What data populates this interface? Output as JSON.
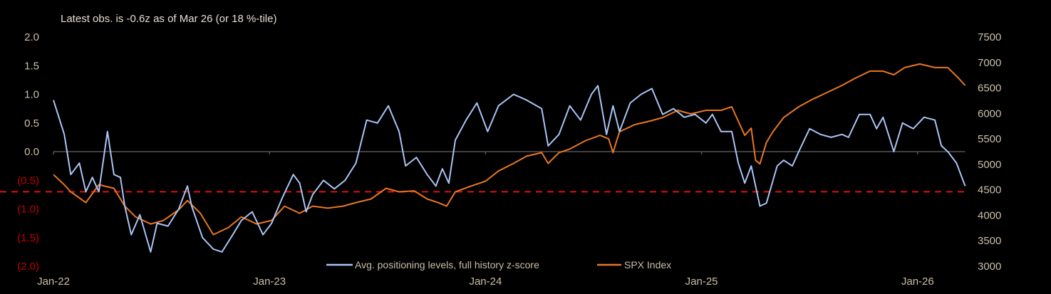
{
  "chart_data": {
    "type": "line",
    "title": "Latest obs. is -0.6z as of Mar 26 (or 18 %-tile)",
    "xlabel": "",
    "ylabel_left": "",
    "ylabel_right": "",
    "x_ticks": [
      "Jan-22",
      "Jan-23",
      "Jan-24",
      "Jan-25",
      "Jan-26"
    ],
    "x_range": [
      2022.0,
      2026.22
    ],
    "left_axis": {
      "range": [
        -2.0,
        2.0
      ],
      "ticks": [
        "2.0",
        "1.5",
        "1.0",
        "0.5",
        "0.0",
        "(0.5)",
        "(1.0)",
        "(1.5)",
        "(2.0)"
      ],
      "tick_values": [
        2.0,
        1.5,
        1.0,
        0.5,
        0.0,
        -0.5,
        -1.0,
        -1.5,
        -2.0
      ],
      "negative_color": "#c00000"
    },
    "right_axis": {
      "range": [
        3000,
        7500
      ],
      "ticks": [
        "7500",
        "7000",
        "6500",
        "6000",
        "5500",
        "5000",
        "4500",
        "4000",
        "3500",
        "3000"
      ],
      "tick_values": [
        7500,
        7000,
        6500,
        6000,
        5500,
        5000,
        4500,
        4000,
        3500,
        3000
      ]
    },
    "threshold": {
      "value": -0.7,
      "axis": "left",
      "color": "#e01010",
      "style": "dashed"
    },
    "legend_placement": "bottom-center",
    "series": [
      {
        "name": "Avg. positioning levels, full history z-score",
        "axis": "left",
        "color": "#a9c4f5",
        "points": [
          [
            2022.0,
            0.9
          ],
          [
            2022.05,
            0.3
          ],
          [
            2022.08,
            -0.4
          ],
          [
            2022.12,
            -0.2
          ],
          [
            2022.15,
            -0.7
          ],
          [
            2022.18,
            -0.45
          ],
          [
            2022.21,
            -0.7
          ],
          [
            2022.25,
            0.35
          ],
          [
            2022.28,
            -0.4
          ],
          [
            2022.31,
            -0.45
          ],
          [
            2022.33,
            -0.95
          ],
          [
            2022.36,
            -1.45
          ],
          [
            2022.4,
            -1.1
          ],
          [
            2022.45,
            -1.75
          ],
          [
            2022.48,
            -1.25
          ],
          [
            2022.53,
            -1.3
          ],
          [
            2022.58,
            -1.0
          ],
          [
            2022.62,
            -0.6
          ],
          [
            2022.64,
            -0.95
          ],
          [
            2022.69,
            -1.5
          ],
          [
            2022.74,
            -1.7
          ],
          [
            2022.78,
            -1.75
          ],
          [
            2022.83,
            -1.45
          ],
          [
            2022.87,
            -1.2
          ],
          [
            2022.92,
            -1.05
          ],
          [
            2022.97,
            -1.45
          ],
          [
            2023.01,
            -1.25
          ],
          [
            2023.06,
            -0.8
          ],
          [
            2023.11,
            -0.4
          ],
          [
            2023.14,
            -0.55
          ],
          [
            2023.17,
            -1.05
          ],
          [
            2023.2,
            -0.75
          ],
          [
            2023.25,
            -0.5
          ],
          [
            2023.3,
            -0.65
          ],
          [
            2023.35,
            -0.5
          ],
          [
            2023.4,
            -0.2
          ],
          [
            2023.45,
            0.55
          ],
          [
            2023.5,
            0.5
          ],
          [
            2023.55,
            0.8
          ],
          [
            2023.6,
            0.35
          ],
          [
            2023.63,
            -0.25
          ],
          [
            2023.68,
            -0.1
          ],
          [
            2023.73,
            -0.4
          ],
          [
            2023.77,
            -0.6
          ],
          [
            2023.8,
            -0.3
          ],
          [
            2023.83,
            -0.55
          ],
          [
            2023.86,
            0.2
          ],
          [
            2023.91,
            0.55
          ],
          [
            2023.96,
            0.85
          ],
          [
            2024.01,
            0.35
          ],
          [
            2024.06,
            0.8
          ],
          [
            2024.13,
            1.0
          ],
          [
            2024.19,
            0.9
          ],
          [
            2024.26,
            0.75
          ],
          [
            2024.29,
            0.1
          ],
          [
            2024.34,
            0.3
          ],
          [
            2024.39,
            0.8
          ],
          [
            2024.44,
            0.55
          ],
          [
            2024.49,
            1.0
          ],
          [
            2024.52,
            1.15
          ],
          [
            2024.56,
            0.3
          ],
          [
            2024.59,
            0.8
          ],
          [
            2024.62,
            0.35
          ],
          [
            2024.67,
            0.85
          ],
          [
            2024.72,
            1.0
          ],
          [
            2024.77,
            1.1
          ],
          [
            2024.82,
            0.65
          ],
          [
            2024.87,
            0.75
          ],
          [
            2024.92,
            0.6
          ],
          [
            2024.97,
            0.65
          ],
          [
            2025.02,
            0.5
          ],
          [
            2025.05,
            0.65
          ],
          [
            2025.09,
            0.35
          ],
          [
            2025.14,
            0.35
          ],
          [
            2025.17,
            -0.2
          ],
          [
            2025.2,
            -0.55
          ],
          [
            2025.23,
            -0.25
          ],
          [
            2025.27,
            -0.95
          ],
          [
            2025.3,
            -0.9
          ],
          [
            2025.35,
            -0.25
          ],
          [
            2025.38,
            -0.15
          ],
          [
            2025.42,
            -0.25
          ],
          [
            2025.45,
            0.0
          ],
          [
            2025.5,
            0.4
          ],
          [
            2025.55,
            0.3
          ],
          [
            2025.6,
            0.25
          ],
          [
            2025.65,
            0.3
          ],
          [
            2025.68,
            0.25
          ],
          [
            2025.73,
            0.65
          ],
          [
            2025.78,
            0.65
          ],
          [
            2025.81,
            0.4
          ],
          [
            2025.84,
            0.6
          ],
          [
            2025.89,
            0.0
          ],
          [
            2025.93,
            0.5
          ],
          [
            2025.98,
            0.4
          ],
          [
            2026.03,
            0.6
          ],
          [
            2026.08,
            0.55
          ],
          [
            2026.11,
            0.1
          ],
          [
            2026.14,
            0.0
          ],
          [
            2026.18,
            -0.2
          ],
          [
            2026.22,
            -0.6
          ]
        ]
      },
      {
        "name": "SPX Index",
        "axis": "right",
        "color": "#e87722",
        "points": [
          [
            2022.0,
            4800
          ],
          [
            2022.05,
            4600
          ],
          [
            2022.08,
            4460
          ],
          [
            2022.15,
            4250
          ],
          [
            2022.21,
            4600
          ],
          [
            2022.28,
            4530
          ],
          [
            2022.33,
            4180
          ],
          [
            2022.38,
            3970
          ],
          [
            2022.45,
            3830
          ],
          [
            2022.51,
            3900
          ],
          [
            2022.58,
            4110
          ],
          [
            2022.62,
            4290
          ],
          [
            2022.68,
            4040
          ],
          [
            2022.74,
            3620
          ],
          [
            2022.81,
            3760
          ],
          [
            2022.87,
            3970
          ],
          [
            2022.94,
            3830
          ],
          [
            2023.01,
            3900
          ],
          [
            2023.07,
            4180
          ],
          [
            2023.14,
            4040
          ],
          [
            2023.2,
            4180
          ],
          [
            2023.27,
            4140
          ],
          [
            2023.34,
            4180
          ],
          [
            2023.4,
            4250
          ],
          [
            2023.47,
            4320
          ],
          [
            2023.54,
            4530
          ],
          [
            2023.6,
            4460
          ],
          [
            2023.67,
            4480
          ],
          [
            2023.73,
            4320
          ],
          [
            2023.78,
            4250
          ],
          [
            2023.82,
            4180
          ],
          [
            2023.86,
            4460
          ],
          [
            2023.93,
            4570
          ],
          [
            2024.0,
            4670
          ],
          [
            2024.06,
            4870
          ],
          [
            2024.13,
            5020
          ],
          [
            2024.19,
            5160
          ],
          [
            2024.26,
            5230
          ],
          [
            2024.29,
            5020
          ],
          [
            2024.34,
            5230
          ],
          [
            2024.39,
            5300
          ],
          [
            2024.46,
            5460
          ],
          [
            2024.53,
            5570
          ],
          [
            2024.57,
            5500
          ],
          [
            2024.59,
            5230
          ],
          [
            2024.62,
            5640
          ],
          [
            2024.69,
            5780
          ],
          [
            2024.76,
            5850
          ],
          [
            2024.82,
            5920
          ],
          [
            2024.89,
            6060
          ],
          [
            2024.95,
            5990
          ],
          [
            2025.02,
            6060
          ],
          [
            2025.09,
            6060
          ],
          [
            2025.14,
            6130
          ],
          [
            2025.17,
            5850
          ],
          [
            2025.2,
            5570
          ],
          [
            2025.23,
            5710
          ],
          [
            2025.25,
            5080
          ],
          [
            2025.27,
            5010
          ],
          [
            2025.3,
            5430
          ],
          [
            2025.33,
            5640
          ],
          [
            2025.38,
            5920
          ],
          [
            2025.45,
            6130
          ],
          [
            2025.51,
            6270
          ],
          [
            2025.58,
            6410
          ],
          [
            2025.65,
            6550
          ],
          [
            2025.71,
            6690
          ],
          [
            2025.78,
            6830
          ],
          [
            2025.84,
            6830
          ],
          [
            2025.89,
            6760
          ],
          [
            2025.94,
            6900
          ],
          [
            2026.01,
            6970
          ],
          [
            2026.08,
            6900
          ],
          [
            2026.14,
            6900
          ],
          [
            2026.19,
            6690
          ],
          [
            2026.22,
            6550
          ]
        ]
      }
    ]
  }
}
